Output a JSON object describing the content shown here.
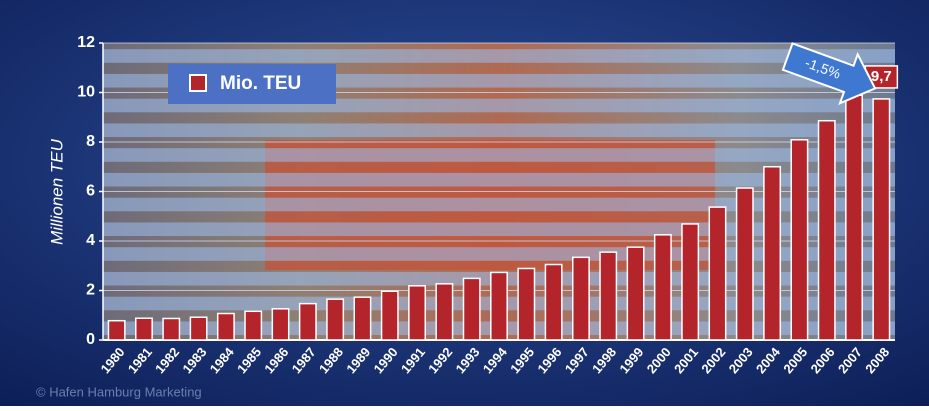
{
  "chart_data": {
    "type": "bar",
    "y_label": "Millionen TEU",
    "categories": [
      "1980",
      "1981",
      "1982",
      "1983",
      "1984",
      "1985",
      "1986",
      "1987",
      "1988",
      "1989",
      "1990",
      "1991",
      "1992",
      "1993",
      "1994",
      "1995",
      "1996",
      "1997",
      "1998",
      "1999",
      "2000",
      "2001",
      "2002",
      "2003",
      "2004",
      "2005",
      "2006",
      "2007",
      "2008"
    ],
    "series": [
      {
        "name": "Mio. TEU",
        "color": "#b3242b",
        "values": [
          0.78,
          0.88,
          0.87,
          0.92,
          1.07,
          1.16,
          1.26,
          1.47,
          1.65,
          1.73,
          1.97,
          2.19,
          2.27,
          2.49,
          2.73,
          2.89,
          3.05,
          3.34,
          3.55,
          3.75,
          4.25,
          4.69,
          5.37,
          6.14,
          7.0,
          8.09,
          8.86,
          9.89,
          9.74
        ],
        "value_labels": [
          null,
          null,
          null,
          null,
          null,
          null,
          null,
          null,
          null,
          null,
          null,
          null,
          null,
          null,
          null,
          null,
          null,
          null,
          null,
          null,
          null,
          null,
          null,
          null,
          null,
          null,
          null,
          null,
          "9,7"
        ]
      }
    ],
    "ylim": [
      0,
      12
    ],
    "yticks": [
      0,
      2,
      4,
      6,
      8,
      10,
      12
    ],
    "grid": true,
    "legend": "top-left",
    "annotations": [
      "-1,5%"
    ],
    "source": "© Hafen Hamburg Marketing"
  }
}
